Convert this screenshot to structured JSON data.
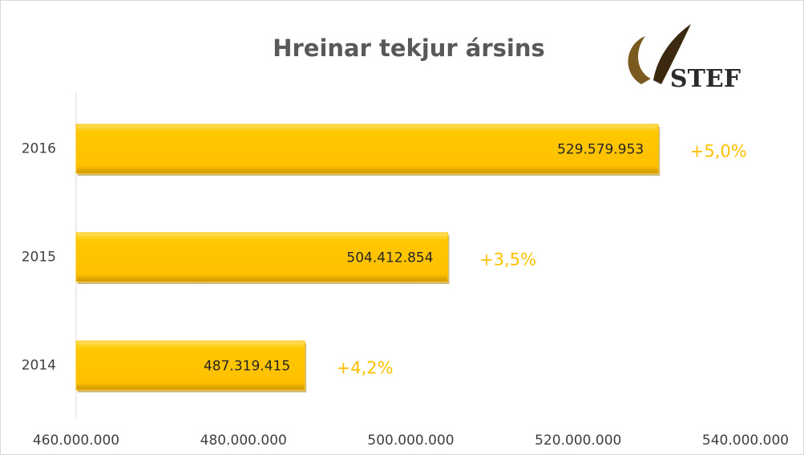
{
  "chart_data": {
    "type": "bar",
    "orientation": "horizontal",
    "title": "Hreinar tekjur ársins",
    "logo_text": "STEF",
    "categories": [
      "2014",
      "2015",
      "2016"
    ],
    "values": [
      487319415,
      504412854,
      529579953
    ],
    "value_labels": [
      "487.319.415",
      "504.412.854",
      "529.579.953"
    ],
    "annotations": [
      "+4,2%",
      "+3,5%",
      "+5,0%"
    ],
    "color": "#ffc000",
    "annotation_color": "#ffc000",
    "xlim": [
      460000000,
      540000000
    ],
    "xticks": [
      {
        "value": 460000000,
        "label": "460.000.000"
      },
      {
        "value": 480000000,
        "label": "480.000.000"
      },
      {
        "value": 500000000,
        "label": "500.000.000"
      },
      {
        "value": 520000000,
        "label": "520.000.000"
      },
      {
        "value": 540000000,
        "label": "540.000.000"
      }
    ],
    "grid": false
  }
}
